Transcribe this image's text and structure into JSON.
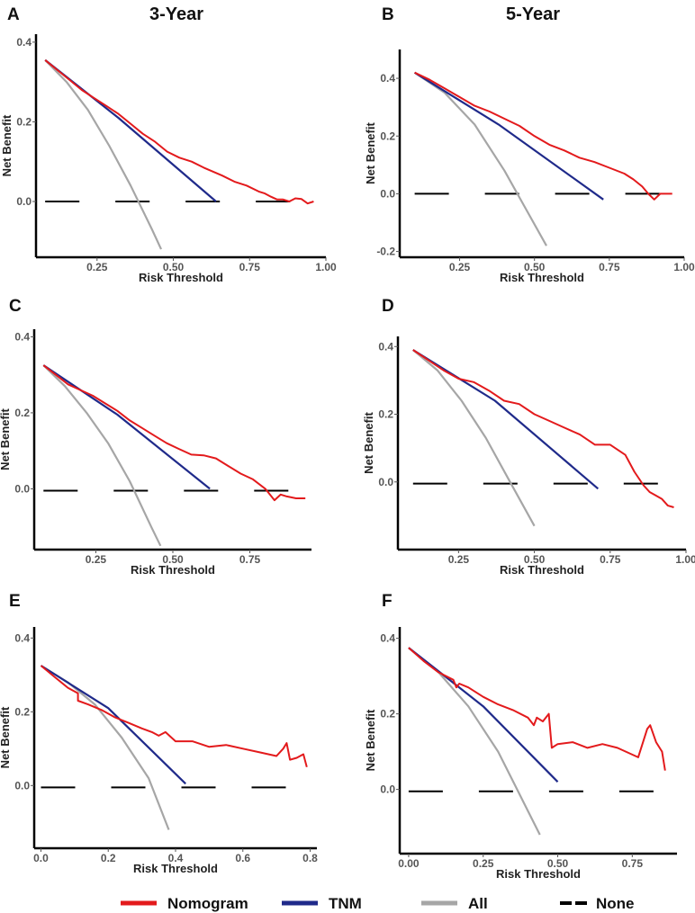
{
  "figure": {
    "column_titles": [
      "3-Year",
      "5-Year"
    ],
    "legend": [
      {
        "label": "Nomogram",
        "color": "#e31a1c",
        "style": "solid"
      },
      {
        "label": "TNM",
        "color": "#1f2a8a",
        "style": "solid"
      },
      {
        "label": "All",
        "color": "#a6a6a6",
        "style": "solid"
      },
      {
        "label": "None",
        "color": "#000000",
        "style": "dashed"
      }
    ]
  },
  "chart_data": [
    {
      "panel": "A",
      "type": "line",
      "xlabel": "Risk Threshold",
      "ylabel": "Net Benefit",
      "xlim": [
        0.05,
        1.0
      ],
      "ylim": [
        -0.14,
        0.42
      ],
      "xticks": [
        0.25,
        0.5,
        0.75,
        1.0
      ],
      "xtick_labels": [
        "0.25",
        "0.50",
        "0.75",
        "1.00"
      ],
      "yticks": [
        0.0,
        0.2,
        0.4
      ],
      "ytick_labels": [
        "0.0",
        "0.2",
        "0.4"
      ],
      "series": [
        {
          "name": "Nomogram",
          "x": [
            0.08,
            0.12,
            0.16,
            0.2,
            0.24,
            0.28,
            0.32,
            0.36,
            0.4,
            0.44,
            0.48,
            0.52,
            0.56,
            0.6,
            0.63,
            0.66,
            0.7,
            0.74,
            0.78,
            0.8,
            0.82,
            0.84,
            0.86,
            0.88,
            0.9,
            0.92,
            0.94,
            0.96
          ],
          "y": [
            0.355,
            0.33,
            0.305,
            0.28,
            0.26,
            0.24,
            0.22,
            0.195,
            0.17,
            0.15,
            0.125,
            0.11,
            0.1,
            0.085,
            0.075,
            0.065,
            0.05,
            0.04,
            0.025,
            0.02,
            0.012,
            0.005,
            0.005,
            0.0,
            0.008,
            0.006,
            -0.005,
            0.0
          ]
        },
        {
          "name": "TNM",
          "x": [
            0.08,
            0.32,
            0.64
          ],
          "y": [
            0.355,
            0.21,
            0.0
          ]
        },
        {
          "name": "All",
          "x": [
            0.08,
            0.15,
            0.22,
            0.29,
            0.36,
            0.43,
            0.46
          ],
          "y": [
            0.355,
            0.3,
            0.23,
            0.14,
            0.04,
            -0.07,
            -0.12
          ]
        },
        {
          "name": "None",
          "x": [
            0.08,
            0.96
          ],
          "y": [
            0.0,
            0.0
          ]
        }
      ]
    },
    {
      "panel": "B",
      "type": "line",
      "xlabel": "Risk Threshold",
      "ylabel": "Net Benefit",
      "xlim": [
        0.05,
        1.0
      ],
      "ylim": [
        -0.22,
        0.5
      ],
      "xticks": [
        0.25,
        0.5,
        0.75,
        1.0
      ],
      "xtick_labels": [
        "0.25",
        "0.50",
        "0.75",
        "1.00"
      ],
      "yticks": [
        -0.2,
        0.0,
        0.2,
        0.4
      ],
      "ytick_labels": [
        "-0.2",
        "0.0",
        "0.2",
        "0.4"
      ],
      "series": [
        {
          "name": "Nomogram",
          "x": [
            0.1,
            0.15,
            0.2,
            0.25,
            0.3,
            0.35,
            0.4,
            0.45,
            0.5,
            0.55,
            0.6,
            0.65,
            0.7,
            0.75,
            0.8,
            0.83,
            0.86,
            0.88,
            0.9,
            0.92,
            0.94,
            0.96
          ],
          "y": [
            0.42,
            0.395,
            0.365,
            0.335,
            0.305,
            0.285,
            0.26,
            0.235,
            0.2,
            0.17,
            0.15,
            0.125,
            0.11,
            0.09,
            0.07,
            0.05,
            0.025,
            0.0,
            -0.02,
            0.0,
            0.0,
            0.0
          ]
        },
        {
          "name": "TNM",
          "x": [
            0.1,
            0.38,
            0.73
          ],
          "y": [
            0.42,
            0.24,
            -0.02
          ]
        },
        {
          "name": "All",
          "x": [
            0.1,
            0.2,
            0.3,
            0.4,
            0.47,
            0.54
          ],
          "y": [
            0.42,
            0.35,
            0.24,
            0.08,
            -0.05,
            -0.18
          ]
        },
        {
          "name": "None",
          "x": [
            0.1,
            0.96
          ],
          "y": [
            0.0,
            0.0
          ]
        }
      ]
    },
    {
      "panel": "C",
      "type": "line",
      "xlabel": "Risk Threshold",
      "ylabel": "Net Benefit",
      "xlim": [
        0.05,
        0.95
      ],
      "ylim": [
        -0.16,
        0.42
      ],
      "xticks": [
        0.25,
        0.5,
        0.75
      ],
      "xtick_labels": [
        "0.25",
        "0.50",
        "0.75"
      ],
      "yticks": [
        0.0,
        0.2,
        0.4
      ],
      "ytick_labels": [
        "0.0",
        "0.2",
        "0.4"
      ],
      "series": [
        {
          "name": "Nomogram",
          "x": [
            0.08,
            0.12,
            0.16,
            0.2,
            0.24,
            0.28,
            0.32,
            0.36,
            0.4,
            0.44,
            0.48,
            0.52,
            0.56,
            0.6,
            0.64,
            0.68,
            0.72,
            0.76,
            0.8,
            0.83,
            0.85,
            0.87,
            0.9,
            0.93
          ],
          "y": [
            0.325,
            0.3,
            0.275,
            0.26,
            0.245,
            0.225,
            0.205,
            0.18,
            0.16,
            0.14,
            0.12,
            0.105,
            0.09,
            0.088,
            0.08,
            0.06,
            0.04,
            0.025,
            0.0,
            -0.03,
            -0.015,
            -0.02,
            -0.025,
            -0.025
          ]
        },
        {
          "name": "TNM",
          "x": [
            0.08,
            0.32,
            0.62
          ],
          "y": [
            0.325,
            0.195,
            0.0
          ]
        },
        {
          "name": "All",
          "x": [
            0.08,
            0.15,
            0.22,
            0.29,
            0.36,
            0.43,
            0.46
          ],
          "y": [
            0.325,
            0.27,
            0.2,
            0.12,
            0.02,
            -0.1,
            -0.15
          ]
        },
        {
          "name": "None",
          "x": [
            0.08,
            0.91
          ],
          "y": [
            -0.005,
            -0.005
          ]
        }
      ]
    },
    {
      "panel": "D",
      "type": "line",
      "xlabel": "Risk Threshold",
      "ylabel": "Net Benefit",
      "xlim": [
        0.05,
        1.0
      ],
      "ylim": [
        -0.2,
        0.43
      ],
      "xticks": [
        0.25,
        0.5,
        0.75,
        1.0
      ],
      "xtick_labels": [
        "0.25",
        "0.50",
        "0.75",
        "1.00"
      ],
      "yticks": [
        0.0,
        0.2,
        0.4
      ],
      "ytick_labels": [
        "0.0",
        "0.2",
        "0.4"
      ],
      "series": [
        {
          "name": "Nomogram",
          "x": [
            0.1,
            0.15,
            0.2,
            0.25,
            0.3,
            0.35,
            0.4,
            0.45,
            0.5,
            0.55,
            0.6,
            0.65,
            0.7,
            0.75,
            0.8,
            0.83,
            0.86,
            0.88,
            0.9,
            0.92,
            0.94,
            0.96
          ],
          "y": [
            0.39,
            0.36,
            0.33,
            0.305,
            0.295,
            0.27,
            0.24,
            0.23,
            0.2,
            0.18,
            0.16,
            0.14,
            0.11,
            0.11,
            0.08,
            0.03,
            -0.01,
            -0.03,
            -0.04,
            -0.05,
            -0.07,
            -0.075
          ]
        },
        {
          "name": "TNM",
          "x": [
            0.1,
            0.37,
            0.71
          ],
          "y": [
            0.39,
            0.24,
            -0.02
          ]
        },
        {
          "name": "All",
          "x": [
            0.1,
            0.18,
            0.26,
            0.34,
            0.42,
            0.5
          ],
          "y": [
            0.39,
            0.33,
            0.24,
            0.13,
            -0.0,
            -0.13
          ]
        },
        {
          "name": "None",
          "x": [
            0.1,
            0.93
          ],
          "y": [
            -0.005,
            -0.005
          ]
        }
      ]
    },
    {
      "panel": "E",
      "type": "line",
      "xlabel": "Risk Threshold",
      "ylabel": "Net Benefit",
      "xlim": [
        -0.02,
        0.82
      ],
      "ylim": [
        -0.17,
        0.43
      ],
      "xticks": [
        0.0,
        0.2,
        0.4,
        0.6,
        0.8
      ],
      "xtick_labels": [
        "0.0",
        "0.2",
        "0.4",
        "0.6",
        "0.8"
      ],
      "yticks": [
        0.0,
        0.2,
        0.4
      ],
      "ytick_labels": [
        "0.0",
        "0.2",
        "0.4"
      ],
      "series": [
        {
          "name": "Nomogram",
          "x": [
            0.0,
            0.04,
            0.08,
            0.11,
            0.11,
            0.14,
            0.18,
            0.22,
            0.26,
            0.3,
            0.33,
            0.35,
            0.37,
            0.4,
            0.45,
            0.5,
            0.55,
            0.6,
            0.65,
            0.7,
            0.72,
            0.73,
            0.74,
            0.76,
            0.78,
            0.79
          ],
          "y": [
            0.325,
            0.295,
            0.265,
            0.25,
            0.23,
            0.22,
            0.205,
            0.185,
            0.17,
            0.155,
            0.145,
            0.135,
            0.145,
            0.12,
            0.12,
            0.105,
            0.11,
            0.1,
            0.09,
            0.08,
            0.1,
            0.115,
            0.07,
            0.075,
            0.085,
            0.05
          ]
        },
        {
          "name": "TNM",
          "x": [
            0.0,
            0.2,
            0.43
          ],
          "y": [
            0.325,
            0.21,
            0.005
          ]
        },
        {
          "name": "All",
          "x": [
            0.0,
            0.08,
            0.16,
            0.24,
            0.32,
            0.38
          ],
          "y": [
            0.325,
            0.28,
            0.22,
            0.13,
            0.02,
            -0.12
          ]
        },
        {
          "name": "None",
          "x": [
            0.0,
            0.78
          ],
          "y": [
            -0.005,
            -0.005
          ]
        }
      ]
    },
    {
      "panel": "F",
      "type": "line",
      "xlabel": "Risk Threshold",
      "ylabel": "Net Benefit",
      "xlim": [
        -0.03,
        0.9
      ],
      "ylim": [
        -0.17,
        0.43
      ],
      "xticks": [
        0.0,
        0.25,
        0.5,
        0.75
      ],
      "xtick_labels": [
        "0.00",
        "0.25",
        "0.50",
        "0.75"
      ],
      "yticks": [
        0.0,
        0.2,
        0.4
      ],
      "ytick_labels": [
        "0.0",
        "0.2",
        "0.4"
      ],
      "series": [
        {
          "name": "Nomogram",
          "x": [
            0.0,
            0.05,
            0.1,
            0.15,
            0.16,
            0.17,
            0.2,
            0.25,
            0.3,
            0.35,
            0.4,
            0.42,
            0.43,
            0.45,
            0.47,
            0.48,
            0.5,
            0.55,
            0.6,
            0.65,
            0.7,
            0.77,
            0.8,
            0.81,
            0.83,
            0.85,
            0.86
          ],
          "y": [
            0.375,
            0.34,
            0.31,
            0.29,
            0.27,
            0.28,
            0.27,
            0.245,
            0.225,
            0.21,
            0.19,
            0.17,
            0.19,
            0.18,
            0.2,
            0.11,
            0.12,
            0.125,
            0.11,
            0.12,
            0.11,
            0.085,
            0.16,
            0.17,
            0.125,
            0.1,
            0.05
          ]
        },
        {
          "name": "TNM",
          "x": [
            0.0,
            0.25,
            0.5
          ],
          "y": [
            0.375,
            0.22,
            0.02
          ]
        },
        {
          "name": "All",
          "x": [
            0.0,
            0.1,
            0.2,
            0.3,
            0.37,
            0.44
          ],
          "y": [
            0.375,
            0.31,
            0.22,
            0.1,
            -0.01,
            -0.12
          ]
        },
        {
          "name": "None",
          "x": [
            0.0,
            0.84
          ],
          "y": [
            -0.005,
            -0.005
          ]
        }
      ]
    }
  ]
}
